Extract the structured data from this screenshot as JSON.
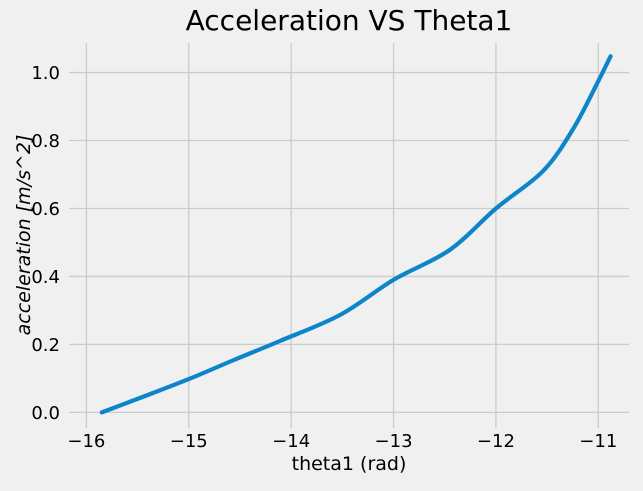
{
  "figure": {
    "background_color": "#f0f0f0",
    "grid_color": "#cbcbcb",
    "text_color": "#000000"
  },
  "chart_data": {
    "type": "line",
    "title": "Acceleration VS Theta1",
    "xlabel": "theta1 (rad)",
    "ylabel": "acceleration [m/s^2]",
    "grid": true,
    "legend": false,
    "xlim": [
      -16.17,
      -10.7
    ],
    "ylim": [
      -0.046,
      1.087
    ],
    "x_ticks": [
      -16,
      -15,
      -14,
      -13,
      -12,
      -11
    ],
    "x_tick_labels": [
      "−16",
      "−15",
      "−14",
      "−13",
      "−12",
      "−11"
    ],
    "y_ticks": [
      0.0,
      0.2,
      0.4,
      0.6,
      0.8,
      1.0
    ],
    "y_tick_labels": [
      "0.0",
      "0.2",
      "0.4",
      "0.6",
      "0.8",
      "1.0"
    ],
    "series": [
      {
        "name": "acceleration",
        "color": "#0d86c9",
        "line_width": 4.2,
        "x": [
          -15.85,
          -15.43,
          -15.0,
          -14.56,
          -14.11,
          -13.52,
          -13.0,
          -12.45,
          -12.0,
          -11.54,
          -11.24,
          -11.0,
          -10.88
        ],
        "y": [
          0.0,
          0.048,
          0.098,
          0.154,
          0.21,
          0.287,
          0.39,
          0.478,
          0.6,
          0.71,
          0.837,
          0.975,
          1.048
        ]
      }
    ]
  }
}
